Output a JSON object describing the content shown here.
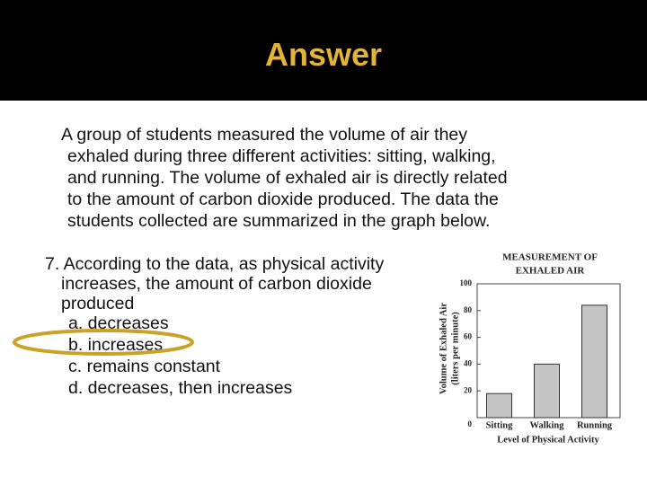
{
  "header": {
    "title": "Answer"
  },
  "paragraph": [
    "A group of students measured the volume of air they",
    "exhaled during three different activities: sitting, walking,",
    "and running. The volume of exhaled air is directly related",
    "to the amount of carbon dioxide produced. The data the",
    "students collected are summarized in the graph below."
  ],
  "question": {
    "lines": [
      "7. According to the data, as physical activity",
      "increases, the amount of carbon dioxide",
      "produced"
    ],
    "options": [
      "a. decreases",
      "b. increases",
      "c. remains constant",
      "d. decreases, then increases"
    ]
  },
  "chart_data": {
    "type": "bar",
    "title": [
      "MEASUREMENT OF",
      "EXHALED AIR"
    ],
    "y_label": [
      "Volume of Exhaled Air",
      "(liters per minute)"
    ],
    "x_label": "Level of Physical Activity",
    "categories": [
      "Sitting",
      "Walking",
      "Running"
    ],
    "values": [
      18,
      40,
      84
    ],
    "color": "#c4c4c4",
    "ylim": [
      0,
      100
    ],
    "yticks": [
      0,
      20,
      40,
      60,
      80,
      100
    ]
  }
}
